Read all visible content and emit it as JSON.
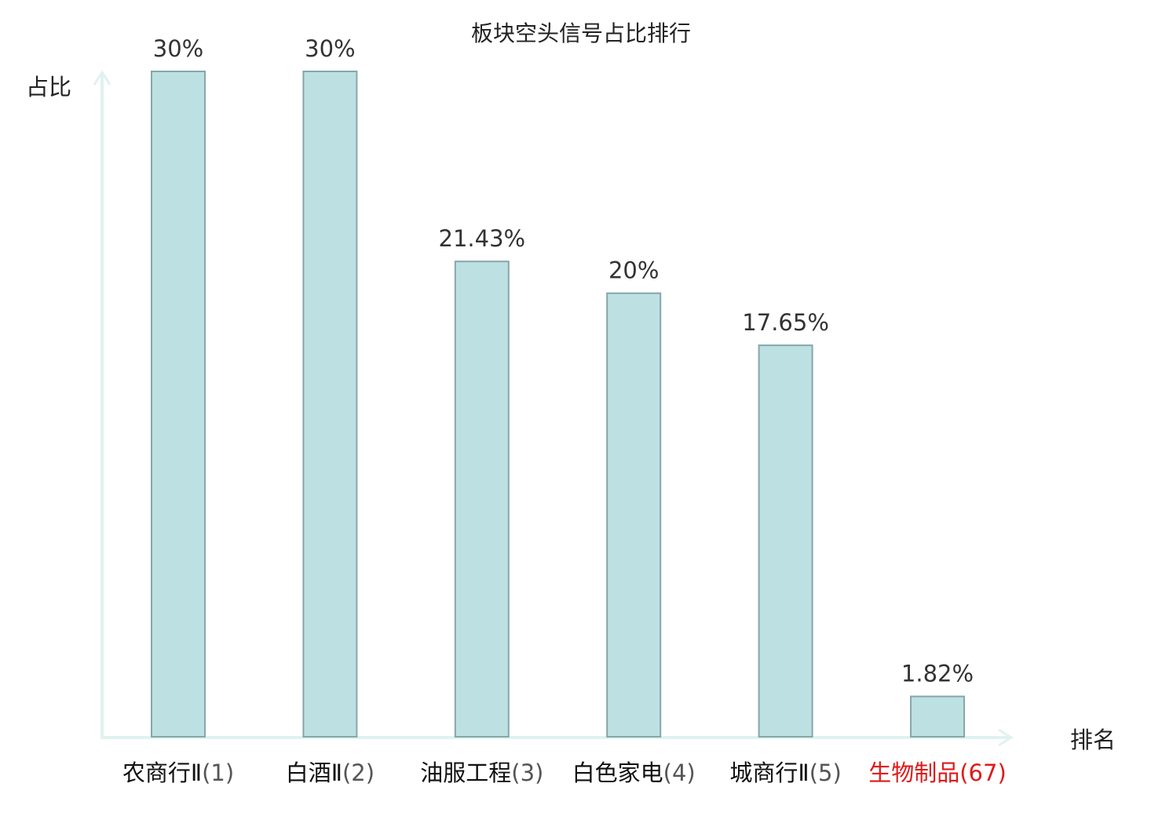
{
  "chart_data": {
    "type": "bar",
    "title": "板块空头信号占比排行",
    "ylabel": "占比",
    "xlabel": "排名",
    "ylim": [
      0,
      30
    ],
    "categories": [
      {
        "name": "农商行Ⅱ",
        "rank": "(1)"
      },
      {
        "name": "白酒Ⅱ",
        "rank": "(2)"
      },
      {
        "name": "油服工程",
        "rank": "(3)"
      },
      {
        "name": "白色家电",
        "rank": "(4)"
      },
      {
        "name": "城商行Ⅱ",
        "rank": "(5)"
      },
      {
        "name": "生物制品",
        "rank": "(67)"
      }
    ],
    "values": [
      30,
      30,
      21.43,
      20,
      17.65,
      1.82
    ],
    "value_labels": [
      "30%",
      "30%",
      "21.43%",
      "20%",
      "17.65%",
      "1.82%"
    ],
    "highlight_index": 5,
    "colors": {
      "bar_fill": "#bde0e2",
      "bar_stroke": "#86a7a9",
      "axis": "#e0f2f0",
      "text": "#333333",
      "highlight": "#e01a1a"
    }
  }
}
